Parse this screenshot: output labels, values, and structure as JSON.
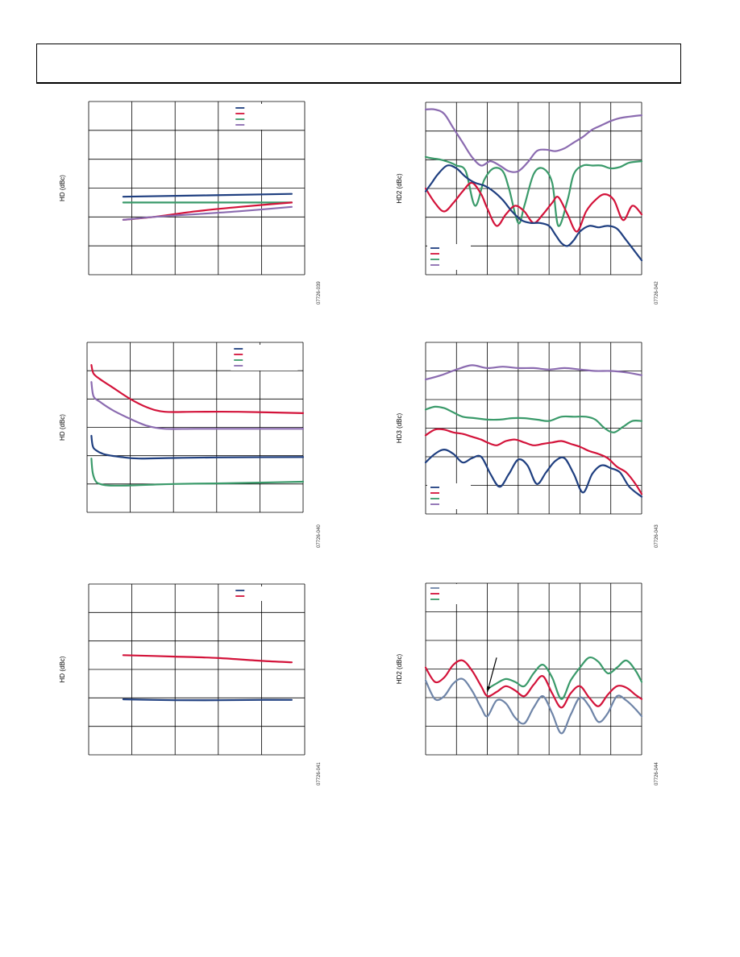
{
  "colors": {
    "blue": "#1f3f80",
    "red": "#d3133a",
    "green": "#3a9a6a",
    "purple": "#8b6bb0",
    "steel": "#6f85a8",
    "grid": "#000000"
  },
  "chart_data": [
    {
      "id": "c1",
      "type": "line",
      "ylabel": "HD (dBc)",
      "fig_id": "07726-039",
      "xlim": [
        0,
        5
      ],
      "ylim": [
        -6,
        0
      ],
      "grid_x": 5,
      "grid_y": 6,
      "legend": {
        "placement": "top-right",
        "entries": [
          "blue",
          "red",
          "green",
          "purple"
        ]
      },
      "series": [
        {
          "color": "blue",
          "x": [
            0.8,
            4.7
          ],
          "y": [
            -3.3,
            -3.2
          ]
        },
        {
          "color": "green",
          "x": [
            0.8,
            4.7
          ],
          "y": [
            -3.5,
            -3.5
          ]
        },
        {
          "color": "red",
          "x": [
            0.8,
            1.5,
            2.5,
            3.5,
            4.7
          ],
          "y": [
            -4.1,
            -4.0,
            -3.8,
            -3.65,
            -3.5
          ]
        },
        {
          "color": "purple",
          "x": [
            0.8,
            1.5,
            2.5,
            3.5,
            4.7
          ],
          "y": [
            -4.1,
            -4.0,
            -3.9,
            -3.8,
            -3.65
          ]
        }
      ]
    },
    {
      "id": "c2",
      "type": "line",
      "ylabel": "HD2 (dBc)",
      "fig_id": "07726-042",
      "xlim": [
        0,
        7
      ],
      "ylim": [
        -6,
        0
      ],
      "grid_x": 7,
      "grid_y": 6,
      "legend": {
        "placement": "bottom-left",
        "entries": [
          "blue",
          "red",
          "green",
          "purple"
        ]
      },
      "series": [
        {
          "color": "purple",
          "x": [
            0,
            0.3,
            0.6,
            0.9,
            1.2,
            1.5,
            1.8,
            2.1,
            2.4,
            2.7,
            3.0,
            3.3,
            3.6,
            3.9,
            4.2,
            4.5,
            4.8,
            5.1,
            5.4,
            5.7,
            6.0,
            6.3,
            6.6,
            7.0
          ],
          "y": [
            -0.25,
            -0.25,
            -0.4,
            -0.9,
            -1.4,
            -1.9,
            -2.2,
            -2.05,
            -2.2,
            -2.4,
            -2.4,
            -2.1,
            -1.7,
            -1.65,
            -1.7,
            -1.6,
            -1.4,
            -1.2,
            -0.95,
            -0.8,
            -0.65,
            -0.55,
            -0.5,
            -0.45
          ]
        },
        {
          "color": "green",
          "x": [
            0,
            0.2,
            0.5,
            0.8,
            1.0,
            1.3,
            1.6,
            1.9,
            2.2,
            2.5,
            2.7,
            3.0,
            3.2,
            3.5,
            3.8,
            4.1,
            4.3,
            4.6,
            4.8,
            5.1,
            5.4,
            5.7,
            6.0,
            6.3,
            6.6,
            7.0
          ],
          "y": [
            -1.9,
            -1.95,
            -2.0,
            -2.1,
            -2.2,
            -2.4,
            -3.6,
            -2.7,
            -2.3,
            -2.4,
            -3.0,
            -4.2,
            -3.6,
            -2.5,
            -2.3,
            -2.8,
            -4.3,
            -3.4,
            -2.5,
            -2.2,
            -2.2,
            -2.2,
            -2.3,
            -2.25,
            -2.1,
            -2.05
          ]
        },
        {
          "color": "red",
          "x": [
            0,
            0.3,
            0.6,
            0.9,
            1.2,
            1.5,
            1.8,
            2.0,
            2.3,
            2.6,
            2.9,
            3.2,
            3.5,
            3.8,
            4.1,
            4.3,
            4.6,
            4.9,
            5.2,
            5.5,
            5.8,
            6.1,
            6.4,
            6.7,
            7.0
          ],
          "y": [
            -3.0,
            -3.5,
            -3.8,
            -3.5,
            -3.1,
            -2.8,
            -3.2,
            -3.7,
            -4.3,
            -3.9,
            -3.6,
            -3.8,
            -4.2,
            -3.9,
            -3.5,
            -3.3,
            -3.9,
            -4.5,
            -3.8,
            -3.4,
            -3.2,
            -3.4,
            -4.1,
            -3.6,
            -3.9
          ]
        },
        {
          "color": "blue",
          "x": [
            0,
            0.2,
            0.4,
            0.7,
            1.0,
            1.3,
            1.6,
            1.9,
            2.2,
            2.5,
            2.8,
            3.1,
            3.4,
            3.7,
            4.0,
            4.2,
            4.4,
            4.6,
            4.8,
            5.0,
            5.3,
            5.6,
            5.9,
            6.2,
            6.5,
            7.0
          ],
          "y": [
            -3.1,
            -2.8,
            -2.5,
            -2.2,
            -2.3,
            -2.6,
            -2.8,
            -2.9,
            -3.1,
            -3.4,
            -3.8,
            -4.1,
            -4.2,
            -4.2,
            -4.3,
            -4.6,
            -4.9,
            -5.0,
            -4.8,
            -4.5,
            -4.3,
            -4.35,
            -4.3,
            -4.4,
            -4.8,
            -5.5
          ]
        }
      ]
    },
    {
      "id": "c3",
      "type": "line",
      "ylabel": "HD (dBc)",
      "fig_id": "07726-040",
      "xlim": [
        0,
        5
      ],
      "ylim": [
        -6,
        0
      ],
      "grid_x": 5,
      "grid_y": 6,
      "legend": {
        "placement": "top-right",
        "entries": [
          "blue",
          "red",
          "green",
          "purple"
        ]
      },
      "series": [
        {
          "color": "red",
          "x": [
            0.1,
            0.15,
            0.3,
            0.6,
            1.0,
            1.4,
            1.8,
            2.5,
            3.5,
            5.0
          ],
          "y": [
            -0.8,
            -1.1,
            -1.3,
            -1.6,
            -2.0,
            -2.3,
            -2.45,
            -2.45,
            -2.45,
            -2.5
          ]
        },
        {
          "color": "purple",
          "x": [
            0.1,
            0.15,
            0.3,
            0.6,
            1.0,
            1.4,
            1.8,
            2.5,
            3.5,
            5.0
          ],
          "y": [
            -1.4,
            -1.9,
            -2.1,
            -2.4,
            -2.7,
            -2.95,
            -3.05,
            -3.05,
            -3.05,
            -3.05
          ]
        },
        {
          "color": "blue",
          "x": [
            0.1,
            0.13,
            0.2,
            0.4,
            0.8,
            1.2,
            2.0,
            3.0,
            5.0
          ],
          "y": [
            -3.3,
            -3.65,
            -3.8,
            -3.95,
            -4.05,
            -4.1,
            -4.08,
            -4.06,
            -4.05
          ]
        },
        {
          "color": "green",
          "x": [
            0.1,
            0.13,
            0.2,
            0.3,
            0.5,
            1.0,
            2.0,
            3.0,
            4.0,
            5.0
          ],
          "y": [
            -4.1,
            -4.6,
            -4.9,
            -5.0,
            -5.05,
            -5.05,
            -5.0,
            -4.98,
            -4.95,
            -4.92
          ]
        }
      ]
    },
    {
      "id": "c4",
      "type": "line",
      "ylabel": "HD3 (dBc)",
      "fig_id": "07726-043",
      "xlim": [
        0,
        7
      ],
      "ylim": [
        -6,
        0
      ],
      "grid_x": 7,
      "grid_y": 6,
      "legend": {
        "placement": "bottom-left",
        "entries": [
          "blue",
          "red",
          "green",
          "purple"
        ]
      },
      "series": [
        {
          "color": "purple",
          "x": [
            0,
            0.5,
            1.0,
            1.5,
            2.0,
            2.5,
            3.0,
            3.5,
            4.0,
            4.5,
            5.0,
            5.5,
            6.0,
            6.5,
            7.0
          ],
          "y": [
            -1.3,
            -1.15,
            -0.95,
            -0.8,
            -0.9,
            -0.85,
            -0.9,
            -0.9,
            -0.95,
            -0.9,
            -0.95,
            -1.0,
            -1.0,
            -1.05,
            -1.15
          ]
        },
        {
          "color": "green",
          "x": [
            0,
            0.3,
            0.6,
            0.9,
            1.2,
            1.6,
            2.0,
            2.4,
            2.8,
            3.2,
            3.6,
            4.0,
            4.4,
            4.8,
            5.2,
            5.5,
            5.8,
            6.1,
            6.4,
            6.7,
            7.0
          ],
          "y": [
            -2.35,
            -2.25,
            -2.3,
            -2.45,
            -2.6,
            -2.65,
            -2.7,
            -2.7,
            -2.65,
            -2.65,
            -2.7,
            -2.75,
            -2.6,
            -2.6,
            -2.6,
            -2.7,
            -3.0,
            -3.15,
            -2.95,
            -2.75,
            -2.75
          ]
        },
        {
          "color": "red",
          "x": [
            0,
            0.3,
            0.6,
            0.9,
            1.2,
            1.5,
            1.8,
            2.0,
            2.3,
            2.6,
            2.9,
            3.2,
            3.5,
            3.8,
            4.1,
            4.4,
            4.7,
            5.0,
            5.3,
            5.6,
            5.9,
            6.2,
            6.5,
            6.8,
            7.0
          ],
          "y": [
            -3.25,
            -3.05,
            -3.05,
            -3.15,
            -3.2,
            -3.3,
            -3.4,
            -3.5,
            -3.6,
            -3.45,
            -3.4,
            -3.5,
            -3.6,
            -3.55,
            -3.5,
            -3.45,
            -3.55,
            -3.65,
            -3.8,
            -3.9,
            -4.05,
            -4.35,
            -4.55,
            -4.95,
            -5.3
          ]
        },
        {
          "color": "blue",
          "x": [
            0,
            0.3,
            0.6,
            0.9,
            1.2,
            1.5,
            1.8,
            2.1,
            2.4,
            2.7,
            3.0,
            3.3,
            3.6,
            3.9,
            4.2,
            4.5,
            4.8,
            5.1,
            5.4,
            5.7,
            6.0,
            6.3,
            6.6,
            7.0
          ],
          "y": [
            -4.2,
            -3.9,
            -3.75,
            -3.9,
            -4.2,
            -4.05,
            -4.0,
            -4.6,
            -5.05,
            -4.6,
            -4.1,
            -4.3,
            -4.95,
            -4.55,
            -4.15,
            -4.05,
            -4.6,
            -5.25,
            -4.6,
            -4.3,
            -4.4,
            -4.55,
            -5.05,
            -5.4
          ]
        }
      ]
    },
    {
      "id": "c5",
      "type": "line",
      "ylabel": "HD (dBc)",
      "fig_id": "07726-041",
      "xlim": [
        0,
        5
      ],
      "ylim": [
        -6,
        0
      ],
      "grid_x": 5,
      "grid_y": 6,
      "legend": {
        "placement": "top-right",
        "entries": [
          "blue",
          "red"
        ]
      },
      "series": [
        {
          "color": "red",
          "x": [
            0.8,
            2.0,
            3.0,
            4.0,
            4.7
          ],
          "y": [
            -2.5,
            -2.55,
            -2.6,
            -2.7,
            -2.75
          ]
        },
        {
          "color": "blue",
          "x": [
            0.8,
            2.0,
            3.0,
            4.0,
            4.7
          ],
          "y": [
            -4.05,
            -4.08,
            -4.08,
            -4.07,
            -4.07
          ]
        }
      ]
    },
    {
      "id": "c6",
      "type": "line",
      "ylabel": "HD2 (dBc)",
      "fig_id": "07726-044",
      "xlim": [
        0,
        7
      ],
      "ylim": [
        -6,
        0
      ],
      "grid_x": 7,
      "grid_y": 6,
      "legend": {
        "placement": "top-left",
        "entries": [
          "steel",
          "red",
          "green"
        ]
      },
      "annotation": {
        "from": [
          2.3,
          -2.6
        ],
        "to": [
          2.0,
          -3.8
        ]
      },
      "series": [
        {
          "color": "green",
          "x": [
            2.0,
            2.3,
            2.6,
            2.9,
            3.2,
            3.5,
            3.8,
            4.1,
            4.4,
            4.7,
            5.0,
            5.3,
            5.6,
            5.9,
            6.2,
            6.5,
            6.8,
            7.0
          ],
          "y": [
            -3.7,
            -3.5,
            -3.35,
            -3.45,
            -3.6,
            -3.15,
            -2.85,
            -3.3,
            -4.05,
            -3.4,
            -2.95,
            -2.6,
            -2.75,
            -3.15,
            -2.95,
            -2.7,
            -3.05,
            -3.45
          ]
        },
        {
          "color": "red",
          "x": [
            0,
            0.3,
            0.6,
            0.9,
            1.2,
            1.5,
            1.8,
            2.0,
            2.3,
            2.6,
            2.9,
            3.2,
            3.5,
            3.8,
            4.1,
            4.4,
            4.7,
            5.0,
            5.3,
            5.6,
            5.9,
            6.2,
            6.5,
            6.8,
            7.0
          ],
          "y": [
            -2.95,
            -3.45,
            -3.3,
            -2.85,
            -2.7,
            -3.05,
            -3.6,
            -3.95,
            -3.8,
            -3.6,
            -3.75,
            -3.95,
            -3.55,
            -3.25,
            -3.85,
            -4.35,
            -3.85,
            -3.6,
            -4.0,
            -4.3,
            -3.9,
            -3.6,
            -3.65,
            -3.9,
            -4.05
          ]
        },
        {
          "color": "steel",
          "x": [
            0,
            0.3,
            0.6,
            0.9,
            1.2,
            1.5,
            1.8,
            2.0,
            2.3,
            2.6,
            2.9,
            3.2,
            3.5,
            3.8,
            4.1,
            4.4,
            4.7,
            5.0,
            5.3,
            5.6,
            5.9,
            6.2,
            6.5,
            6.8,
            7.0
          ],
          "y": [
            -3.4,
            -4.05,
            -3.95,
            -3.5,
            -3.35,
            -3.75,
            -4.35,
            -4.65,
            -4.1,
            -4.2,
            -4.7,
            -4.9,
            -4.35,
            -3.95,
            -4.55,
            -5.25,
            -4.6,
            -4.0,
            -4.3,
            -4.85,
            -4.55,
            -3.95,
            -4.1,
            -4.4,
            -4.65
          ]
        }
      ]
    }
  ]
}
